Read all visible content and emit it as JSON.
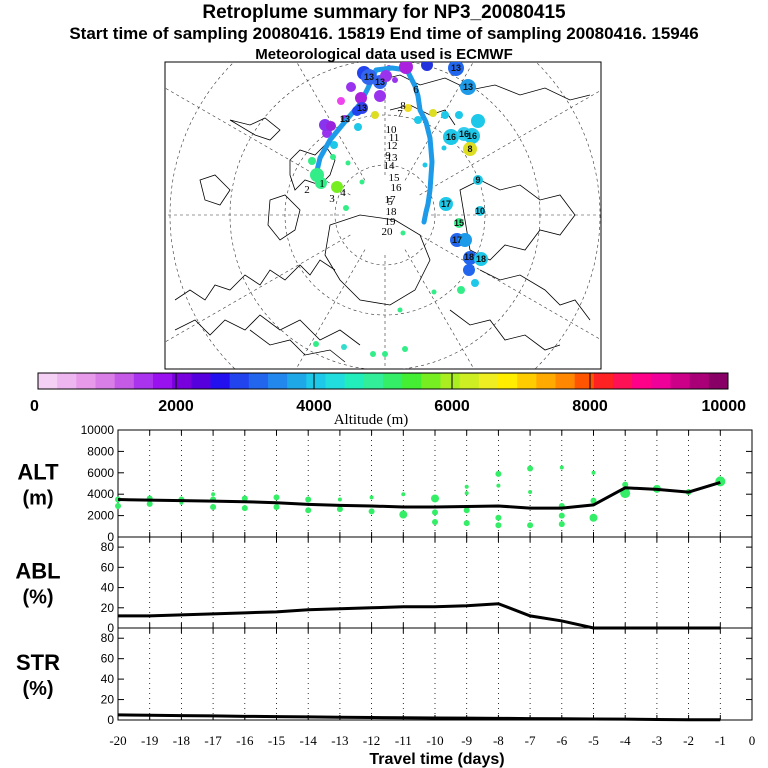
{
  "header": {
    "title": "Retroplume summary for NP3_20080415",
    "sampling_line": "Start time of sampling 20080416. 15819     End time of sampling 20080416. 15946",
    "meteo_line": "Meteorological data used is ECMWF"
  },
  "colorbar": {
    "label": "Altitude (m)",
    "ticks": [
      "0",
      "2000",
      "4000",
      "6000",
      "8000",
      "10000"
    ],
    "range": [
      0,
      10000
    ]
  },
  "map": {
    "track_color": "#1e9be8",
    "day_labels": [
      "1",
      "2",
      "3",
      "4",
      "5",
      "6",
      "7",
      "8",
      "9",
      "10",
      "11",
      "12",
      "13",
      "14",
      "15",
      "16",
      "17",
      "18",
      "19",
      "20"
    ],
    "cluster_labels": [
      "13",
      "13",
      "13",
      "13",
      "16",
      "16",
      "13",
      "8",
      "9",
      "17",
      "10",
      "17",
      "18",
      "16",
      "15",
      "13",
      "18"
    ]
  },
  "chart_data": [
    {
      "type": "scatter",
      "panel": "ALT",
      "ylabel": "ALT (m)",
      "ylabel_top": "ALT",
      "ylabel_bottom": "(m)",
      "ylim": [
        0,
        10000
      ],
      "yticks": [
        "0",
        "2000",
        "4000",
        "6000",
        "8000",
        "10000"
      ],
      "xlim": [
        -20,
        0
      ],
      "line_x": [
        -20,
        -19,
        -18,
        -17,
        -16,
        -15,
        -14,
        -13,
        -12,
        -11,
        -10,
        -9,
        -8,
        -7,
        -6,
        -5,
        -4,
        -3,
        -2,
        -1
      ],
      "line_y": [
        3500,
        3450,
        3400,
        3350,
        3300,
        3200,
        3050,
        2950,
        2900,
        2800,
        2800,
        2850,
        2900,
        2700,
        2700,
        3000,
        4600,
        4450,
        4200,
        5100
      ],
      "cluster_points": [
        {
          "x": -20,
          "y": 3500,
          "s": 3
        },
        {
          "x": -20,
          "y": 2900,
          "s": 3
        },
        {
          "x": -19,
          "y": 3600,
          "s": 3
        },
        {
          "x": -19,
          "y": 3100,
          "s": 3
        },
        {
          "x": -18,
          "y": 3500,
          "s": 3
        },
        {
          "x": -18,
          "y": 3200,
          "s": 2
        },
        {
          "x": -17,
          "y": 4000,
          "s": 2
        },
        {
          "x": -17,
          "y": 3500,
          "s": 3
        },
        {
          "x": -17,
          "y": 2800,
          "s": 3
        },
        {
          "x": -16,
          "y": 3600,
          "s": 3
        },
        {
          "x": -16,
          "y": 2700,
          "s": 3
        },
        {
          "x": -15,
          "y": 3700,
          "s": 3
        },
        {
          "x": -15,
          "y": 2800,
          "s": 3
        },
        {
          "x": -14,
          "y": 3500,
          "s": 3
        },
        {
          "x": -14,
          "y": 2500,
          "s": 3
        },
        {
          "x": -13,
          "y": 3500,
          "s": 2
        },
        {
          "x": -13,
          "y": 2600,
          "s": 3
        },
        {
          "x": -12,
          "y": 3700,
          "s": 2
        },
        {
          "x": -12,
          "y": 2400,
          "s": 3
        },
        {
          "x": -11,
          "y": 4000,
          "s": 2
        },
        {
          "x": -11,
          "y": 2100,
          "s": 4
        },
        {
          "x": -10,
          "y": 3600,
          "s": 4
        },
        {
          "x": -10,
          "y": 2300,
          "s": 3
        },
        {
          "x": -10,
          "y": 1400,
          "s": 3
        },
        {
          "x": -9,
          "y": 4700,
          "s": 2
        },
        {
          "x": -9,
          "y": 4100,
          "s": 2
        },
        {
          "x": -9,
          "y": 2500,
          "s": 3
        },
        {
          "x": -9,
          "y": 1300,
          "s": 3
        },
        {
          "x": -8,
          "y": 5900,
          "s": 3
        },
        {
          "x": -8,
          "y": 4800,
          "s": 2
        },
        {
          "x": -8,
          "y": 1800,
          "s": 3
        },
        {
          "x": -8,
          "y": 1100,
          "s": 3
        },
        {
          "x": -7,
          "y": 6400,
          "s": 3
        },
        {
          "x": -7,
          "y": 4200,
          "s": 2
        },
        {
          "x": -7,
          "y": 1100,
          "s": 3
        },
        {
          "x": -6,
          "y": 6500,
          "s": 2
        },
        {
          "x": -6,
          "y": 2900,
          "s": 3
        },
        {
          "x": -6,
          "y": 2000,
          "s": 3
        },
        {
          "x": -6,
          "y": 1200,
          "s": 3
        },
        {
          "x": -5,
          "y": 6000,
          "s": 2
        },
        {
          "x": -5,
          "y": 3400,
          "s": 3
        },
        {
          "x": -5,
          "y": 1800,
          "s": 4
        },
        {
          "x": -4,
          "y": 4900,
          "s": 3
        },
        {
          "x": -4,
          "y": 4100,
          "s": 5
        },
        {
          "x": -3,
          "y": 4500,
          "s": 4
        },
        {
          "x": -2,
          "y": 4200,
          "s": 3
        },
        {
          "x": -1,
          "y": 5200,
          "s": 5
        }
      ]
    },
    {
      "type": "line",
      "panel": "ABL",
      "ylabel": "ABL (%)",
      "ylabel_top": "ABL",
      "ylabel_bottom": "(%)",
      "ylim": [
        0,
        90
      ],
      "yticks": [
        "0",
        "20",
        "40",
        "60",
        "80"
      ],
      "xlim": [
        -20,
        0
      ],
      "x": [
        -20,
        -19,
        -18,
        -17,
        -16,
        -15,
        -14,
        -13,
        -12,
        -11,
        -10,
        -9,
        -8,
        -7,
        -6,
        -5,
        -4,
        -3,
        -2,
        -1
      ],
      "y": [
        12,
        12,
        13,
        14,
        15,
        16,
        18,
        19,
        20,
        21,
        21,
        22,
        24,
        12,
        7,
        0,
        0,
        0,
        0,
        0
      ]
    },
    {
      "type": "line",
      "panel": "STR",
      "ylabel": "STR (%)",
      "ylabel_top": "STR",
      "ylabel_bottom": "(%)",
      "ylim": [
        0,
        90
      ],
      "yticks": [
        "0",
        "20",
        "40",
        "60",
        "80"
      ],
      "xlim": [
        -20,
        0
      ],
      "x": [
        -20,
        -19,
        -18,
        -17,
        -16,
        -15,
        -14,
        -13,
        -12,
        -11,
        -10,
        -9,
        -8,
        -7,
        -6,
        -5,
        -4,
        -3,
        -2,
        -1
      ],
      "y": [
        5,
        4.6,
        4.3,
        4,
        3.6,
        3.3,
        3,
        2.7,
        2.4,
        2.2,
        2,
        1.8,
        1.6,
        1.4,
        1.2,
        1,
        0.8,
        0.5,
        0.3,
        0.2
      ]
    }
  ],
  "xaxis": {
    "label": "Travel time (days)",
    "ticks": [
      "-20",
      "-19",
      "-18",
      "-17",
      "-16",
      "-15",
      "-14",
      "-13",
      "-12",
      "-11",
      "-10",
      "-9",
      "-8",
      "-7",
      "-6",
      "-5",
      "-4",
      "-3",
      "-2",
      "-1",
      "0"
    ]
  },
  "colors": {
    "point": "#33ee66",
    "line": "#000000"
  }
}
